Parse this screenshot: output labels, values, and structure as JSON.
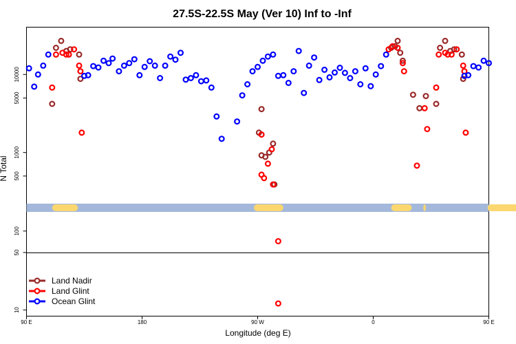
{
  "chart_data": {
    "type": "scatter",
    "title": "27.5S-22.5S May (Ver 10)   Inf to -Inf",
    "xlabel": "Longitude (deg E)",
    "ylabel": "N Total",
    "xlim": [
      90,
      450
    ],
    "x_scale": "linear",
    "x_ticks": [
      {
        "value": 90,
        "label": "90 E"
      },
      {
        "value": 180,
        "label": "180"
      },
      {
        "value": 270,
        "label": "90 W"
      },
      {
        "value": 360,
        "label": "0"
      },
      {
        "value": 450,
        "label": "90 E"
      },
      {
        "value": 540,
        "label": "180"
      }
    ],
    "panels": [
      {
        "name": "upper",
        "y_scale": "log",
        "ylim": [
          200,
          40000
        ],
        "y_ticks": [
          {
            "value": 10000,
            "label": "10000"
          },
          {
            "value": 5000,
            "label": "5000"
          },
          {
            "value": 1000,
            "label": "1000"
          },
          {
            "value": 500,
            "label": "500"
          }
        ]
      },
      {
        "name": "middle",
        "y_scale": "log",
        "ylim": [
          50,
          190
        ],
        "y_ticks": [
          {
            "value": 100,
            "label": "100"
          },
          {
            "value": 50,
            "label": "50"
          }
        ]
      },
      {
        "name": "lower",
        "y_scale": "log",
        "ylim": [
          8.5,
          50
        ],
        "y_ticks": [
          {
            "value": 10,
            "label": "10"
          }
        ]
      }
    ],
    "land_band": {
      "value": 200,
      "ocean_color": "#a3b8da",
      "land_color": "#fcd770",
      "land_segments": [
        [
          110,
          130
        ],
        [
          267,
          290
        ],
        [
          374,
          390
        ],
        [
          399,
          401
        ],
        [
          449,
          480
        ]
      ]
    },
    "legend_position": "bottom-left",
    "series": [
      {
        "name": "Land Nadir",
        "color": "#9a2a2a",
        "points": [
          [
            110,
            4200
          ],
          [
            113,
            22000
          ],
          [
            117,
            27000
          ],
          [
            121,
            20000
          ],
          [
            124,
            21000
          ],
          [
            131,
            18000
          ],
          [
            132,
            8800
          ],
          [
            271,
            1800
          ],
          [
            273,
            3600
          ],
          [
            273,
            920
          ],
          [
            276,
            880
          ],
          [
            279,
            1000
          ],
          [
            282,
            1300
          ],
          [
            283,
            390
          ],
          [
            374,
            22000
          ],
          [
            377,
            23000
          ],
          [
            379,
            27000
          ],
          [
            381,
            19000
          ],
          [
            383,
            15000
          ],
          [
            391,
            5500
          ],
          [
            396,
            3700
          ],
          [
            401,
            5300
          ],
          [
            409,
            4200
          ],
          [
            412,
            22000
          ],
          [
            416,
            27000
          ],
          [
            420,
            20000
          ],
          [
            423,
            21000
          ],
          [
            429,
            18000
          ],
          [
            430,
            8800
          ]
        ]
      },
      {
        "name": "Land Glint",
        "color": "#ff0000",
        "points": [
          [
            110,
            6800
          ],
          [
            113,
            18000
          ],
          [
            118,
            19000
          ],
          [
            121,
            18000
          ],
          [
            123,
            18000
          ],
          [
            127,
            21000
          ],
          [
            131,
            13000
          ],
          [
            132,
            11000
          ],
          [
            133,
            1800
          ],
          [
            273,
            520
          ],
          [
            273,
            1700
          ],
          [
            275,
            470
          ],
          [
            278,
            720
          ],
          [
            281,
            1100
          ],
          [
            282,
            390
          ],
          [
            286,
            72
          ],
          [
            372,
            21000
          ],
          [
            375,
            23000
          ],
          [
            379,
            22000
          ],
          [
            383,
            14000
          ],
          [
            384,
            11000
          ],
          [
            394,
            680
          ],
          [
            400,
            3700
          ],
          [
            402,
            2000
          ],
          [
            409,
            6800
          ],
          [
            411,
            18000
          ],
          [
            416,
            19000
          ],
          [
            418,
            18000
          ],
          [
            421,
            18000
          ],
          [
            425,
            21000
          ],
          [
            430,
            13000
          ],
          [
            431,
            11000
          ],
          [
            432,
            1800
          ],
          [
            286,
            12
          ]
        ]
      },
      {
        "name": "Ocean Glint",
        "color": "#0000ff",
        "points": [
          [
            92,
            12000
          ],
          [
            96,
            7000
          ],
          [
            99,
            10000
          ],
          [
            103,
            13000
          ],
          [
            107,
            18000
          ],
          [
            135,
            9600
          ],
          [
            138,
            9800
          ],
          [
            142,
            12800
          ],
          [
            146,
            12300
          ],
          [
            150,
            15000
          ],
          [
            154,
            14000
          ],
          [
            157,
            16000
          ],
          [
            162,
            11000
          ],
          [
            166,
            13000
          ],
          [
            170,
            14000
          ],
          [
            174,
            15700
          ],
          [
            178,
            9800
          ],
          [
            182,
            12500
          ],
          [
            186,
            14800
          ],
          [
            190,
            13000
          ],
          [
            194,
            9000
          ],
          [
            198,
            13000
          ],
          [
            202,
            17000
          ],
          [
            206,
            15500
          ],
          [
            210,
            19000
          ],
          [
            214,
            8600
          ],
          [
            218,
            9000
          ],
          [
            222,
            9800
          ],
          [
            226,
            8200
          ],
          [
            230,
            8400
          ],
          [
            234,
            6800
          ],
          [
            238,
            2900
          ],
          [
            242,
            1500
          ],
          [
            254,
            2500
          ],
          [
            258,
            5400
          ],
          [
            262,
            7500
          ],
          [
            266,
            11000
          ],
          [
            270,
            12500
          ],
          [
            274,
            15000
          ],
          [
            278,
            17000
          ],
          [
            282,
            18000
          ],
          [
            286,
            9600
          ],
          [
            290,
            9800
          ],
          [
            294,
            7800
          ],
          [
            298,
            11000
          ],
          [
            302,
            20000
          ],
          [
            306,
            5800
          ],
          [
            310,
            13000
          ],
          [
            314,
            16500
          ],
          [
            318,
            8500
          ],
          [
            322,
            11500
          ],
          [
            326,
            9200
          ],
          [
            330,
            10600
          ],
          [
            334,
            12200
          ],
          [
            338,
            10500
          ],
          [
            342,
            9000
          ],
          [
            346,
            11000
          ],
          [
            350,
            7500
          ],
          [
            354,
            12000
          ],
          [
            358,
            7100
          ],
          [
            362,
            10000
          ],
          [
            366,
            12800
          ],
          [
            370,
            18000
          ],
          [
            431,
            9600
          ],
          [
            434,
            9800
          ],
          [
            438,
            12800
          ],
          [
            442,
            12300
          ],
          [
            446,
            15000
          ],
          [
            450,
            14000
          ]
        ]
      }
    ]
  }
}
